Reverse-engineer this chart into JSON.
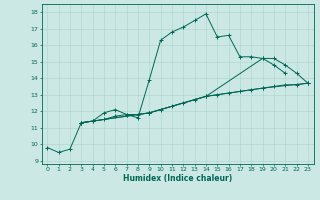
{
  "xlabel": "Humidex (Indice chaleur)",
  "background_color": "#cce8e4",
  "grid_color": "#aad4cc",
  "line_color": "#006655",
  "xlim": [
    -0.5,
    23.5
  ],
  "ylim": [
    8.8,
    18.5
  ],
  "yticks": [
    9,
    10,
    11,
    12,
    13,
    14,
    15,
    16,
    17,
    18
  ],
  "xticks": [
    0,
    1,
    2,
    3,
    4,
    5,
    6,
    7,
    8,
    9,
    10,
    11,
    12,
    13,
    14,
    15,
    16,
    17,
    18,
    19,
    20,
    21,
    22,
    23
  ],
  "lines": [
    {
      "x": [
        0,
        1,
        2,
        3,
        4,
        5,
        6,
        7,
        8,
        9,
        10,
        11,
        12,
        13,
        14,
        15,
        16,
        17,
        18,
        19,
        20,
        21
      ],
      "y": [
        9.8,
        9.5,
        9.7,
        11.3,
        11.4,
        11.9,
        12.1,
        11.8,
        11.6,
        13.9,
        16.3,
        16.8,
        17.1,
        17.5,
        17.9,
        16.5,
        16.6,
        15.3,
        15.3,
        15.2,
        14.8,
        14.3
      ]
    },
    {
      "x": [
        3,
        4,
        5,
        6,
        7,
        8,
        9,
        10,
        11,
        12,
        13,
        14,
        15,
        16,
        17,
        18,
        19,
        20,
        21,
        22,
        23
      ],
      "y": [
        11.3,
        11.4,
        11.5,
        11.7,
        11.8,
        11.8,
        11.9,
        12.1,
        12.3,
        12.5,
        12.7,
        12.9,
        13.0,
        13.1,
        13.2,
        13.3,
        13.4,
        13.5,
        13.6,
        13.6,
        13.7
      ]
    },
    {
      "x": [
        3,
        9,
        14,
        19,
        23
      ],
      "y": [
        11.3,
        11.9,
        12.9,
        13.4,
        13.7
      ]
    },
    {
      "x": [
        3,
        9,
        14,
        19,
        20,
        21,
        22,
        23
      ],
      "y": [
        11.3,
        11.9,
        12.9,
        15.2,
        15.2,
        14.8,
        14.3,
        13.7
      ]
    }
  ]
}
